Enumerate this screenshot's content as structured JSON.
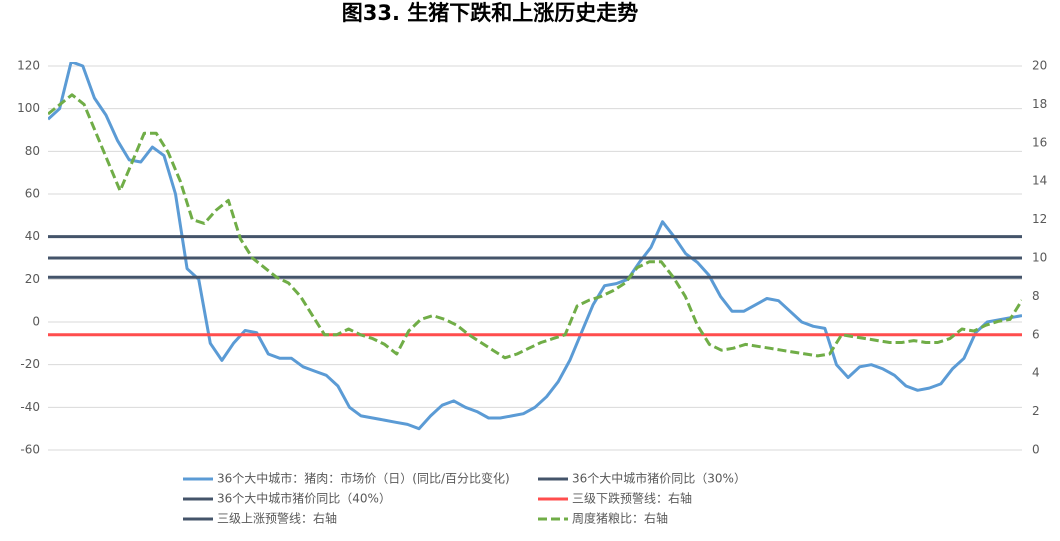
{
  "chart_data": {
    "type": "line",
    "title": "图33. 生猪下跌和上涨历史走势",
    "ylim": [
      -60,
      120
    ],
    "yticks": [
      -60,
      -40,
      -20,
      0,
      20,
      40,
      60,
      80,
      100,
      120
    ],
    "y2lim": [
      0,
      20
    ],
    "y2ticks": [
      0,
      2,
      4,
      6,
      8,
      10,
      12,
      14,
      16,
      18,
      20
    ],
    "grid": true,
    "series": [
      {
        "name": "36个大中城市：猪肉：市场价（日）(同比/百分比变化)",
        "color": "#5b9bd5",
        "values": [
          95,
          100,
          122,
          120,
          105,
          97,
          85,
          76,
          75,
          82,
          78,
          60,
          25,
          20,
          -10,
          -18,
          -10,
          -4,
          -5,
          -15,
          -17,
          -17,
          -21,
          -23,
          -25,
          -30,
          -40,
          -44,
          -45,
          -46,
          -47,
          -48,
          -50,
          -44,
          -39,
          -37,
          -40,
          -42,
          -45,
          -45,
          -44,
          -43,
          -40,
          -35,
          -28,
          -18,
          -5,
          8,
          17,
          18,
          20,
          28,
          35,
          47,
          40,
          32,
          28,
          22,
          12,
          5,
          5,
          8,
          11,
          10,
          5,
          0,
          -2,
          -3,
          -20,
          -26,
          -21,
          -20,
          -22,
          -25,
          -30,
          -32,
          -31,
          -29,
          -22,
          -17,
          -5,
          0,
          1,
          2,
          3
        ]
      },
      {
        "name": "36个大中城市猪价同比（30%）",
        "color": "#44546a",
        "value": 30
      },
      {
        "name": "36个大中城市猪价同比（40%）",
        "color": "#44546a",
        "value": 40
      },
      {
        "name": "三级下跌预警线：右轴",
        "color": "#ff4d4d",
        "value": 6,
        "axis": "y2"
      },
      {
        "name": "三级上涨预警线：右轴",
        "color": "#44546a",
        "value": 9,
        "axis": "y2"
      },
      {
        "name": "周度猪粮比：右轴",
        "color": "#70ad47",
        "axis": "y2",
        "dashed": true,
        "values": [
          17.5,
          18,
          18.5,
          18,
          16.5,
          15,
          13.5,
          15,
          16.5,
          16.5,
          15.5,
          14,
          12,
          11.8,
          12.5,
          13,
          11,
          10,
          9.5,
          9,
          8.7,
          8,
          7,
          6,
          6,
          6.3,
          6,
          5.8,
          5.5,
          5,
          6.2,
          6.8,
          7,
          6.8,
          6.5,
          6,
          5.6,
          5.2,
          4.8,
          5,
          5.3,
          5.6,
          5.8,
          6,
          7.5,
          7.8,
          8,
          8.3,
          8.7,
          9.5,
          9.8,
          9.8,
          9,
          8,
          6.5,
          5.5,
          5.2,
          5.3,
          5.5,
          5.4,
          5.3,
          5.2,
          5.1,
          5,
          4.9,
          5,
          6,
          5.9,
          5.8,
          5.7,
          5.6,
          5.6,
          5.7,
          5.6,
          5.6,
          5.8,
          6.3,
          6.2,
          6.5,
          6.7,
          6.8,
          7.8
        ]
      }
    ]
  }
}
